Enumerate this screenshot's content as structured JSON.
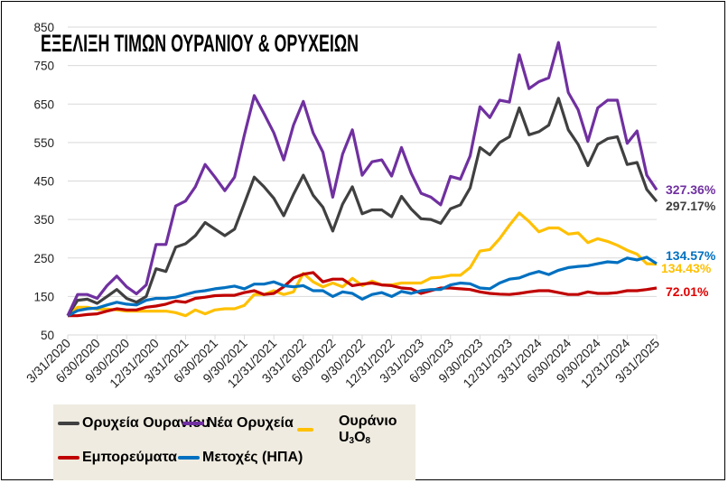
{
  "chart_data": {
    "type": "line",
    "title": "ΕΞΕΛΙΞΗ ΤΙΜΩΝ ΟΥΡΑΝΙΟΥ & ΟΡΥΧΕΙΩΝ",
    "xlabel": "",
    "ylabel": "",
    "ylim": [
      50,
      850
    ],
    "yticks": [
      850,
      750,
      650,
      550,
      450,
      350,
      250,
      150,
      50
    ],
    "grid": true,
    "legend_placement": "bottom",
    "x_tick_labels": [
      "3/31/2020",
      "6/30/2020",
      "9/30/2020",
      "12/31/2020",
      "3/31/2021",
      "6/30/2021",
      "9/30/2021",
      "12/31/2021",
      "3/31/2022",
      "6/30/2022",
      "9/30/2022",
      "12/31/2022",
      "3/31/2023",
      "6/30/2023",
      "9/30/2023",
      "12/31/2023",
      "3/31/2024",
      "6/30/2024",
      "9/30/2024",
      "12/31/2024",
      "3/31/2025"
    ],
    "series": [
      {
        "name": "Ορυχεία Ουρανίου",
        "color": "#404040",
        "end_label": "297.17%",
        "values": [
          100,
          140,
          143,
          132,
          150,
          168,
          145,
          135,
          150,
          222,
          215,
          278,
          287,
          308,
          342,
          325,
          308,
          325,
          392,
          460,
          435,
          405,
          360,
          415,
          465,
          413,
          382,
          320,
          390,
          435,
          365,
          375,
          375,
          357,
          410,
          377,
          352,
          350,
          340,
          378,
          388,
          432,
          537,
          518,
          550,
          565,
          640,
          570,
          578,
          595,
          665,
          583,
          545,
          490,
          545,
          560,
          565,
          493,
          498,
          428,
          397
        ]
      },
      {
        "name": "Νέα Ορυχεία",
        "color": "#7030a0",
        "end_label": "327.36%",
        "values": [
          100,
          155,
          155,
          145,
          178,
          203,
          175,
          157,
          180,
          285,
          285,
          385,
          398,
          435,
          493,
          460,
          425,
          460,
          570,
          672,
          625,
          575,
          505,
          595,
          657,
          575,
          525,
          408,
          520,
          583,
          465,
          500,
          505,
          463,
          537,
          470,
          418,
          408,
          388,
          462,
          455,
          515,
          643,
          615,
          660,
          655,
          778,
          690,
          708,
          718,
          810,
          680,
          635,
          553,
          640,
          660,
          660,
          548,
          580,
          465,
          427
        ]
      },
      {
        "name": "Ουράνιο U3O8",
        "color": "#ffc000",
        "end_label": "134.43%",
        "values": [
          100,
          122,
          122,
          117,
          117,
          115,
          112,
          112,
          112,
          112,
          112,
          108,
          100,
          115,
          105,
          115,
          118,
          118,
          127,
          155,
          155,
          165,
          155,
          162,
          210,
          188,
          175,
          185,
          175,
          197,
          178,
          190,
          180,
          180,
          185,
          185,
          185,
          198,
          200,
          205,
          205,
          225,
          268,
          272,
          300,
          335,
          367,
          345,
          318,
          328,
          328,
          312,
          315,
          290,
          300,
          293,
          283,
          270,
          260,
          235,
          234
        ]
      },
      {
        "name": "Εμπορεύματα",
        "color": "#c00000",
        "label_color": "#e00000",
        "end_label": "72.01%",
        "values": [
          100,
          100,
          103,
          105,
          112,
          118,
          115,
          115,
          122,
          125,
          130,
          138,
          135,
          145,
          148,
          152,
          153,
          153,
          160,
          165,
          155,
          158,
          175,
          198,
          208,
          212,
          188,
          195,
          195,
          178,
          182,
          185,
          180,
          178,
          172,
          170,
          158,
          165,
          172,
          172,
          170,
          168,
          162,
          158,
          156,
          155,
          158,
          162,
          165,
          165,
          160,
          155,
          155,
          162,
          158,
          158,
          160,
          165,
          165,
          168,
          172
        ]
      },
      {
        "name": "Μετοχές (ΗΠΑ)",
        "color": "#0070c0",
        "end_label": "134.57%",
        "values": [
          100,
          113,
          118,
          120,
          128,
          135,
          130,
          128,
          140,
          145,
          145,
          148,
          155,
          162,
          165,
          170,
          173,
          177,
          170,
          182,
          182,
          188,
          178,
          175,
          178,
          165,
          165,
          150,
          162,
          158,
          143,
          155,
          160,
          150,
          163,
          158,
          165,
          168,
          168,
          180,
          185,
          183,
          172,
          170,
          185,
          195,
          198,
          208,
          215,
          207,
          218,
          225,
          228,
          230,
          235,
          240,
          238,
          250,
          245,
          252,
          235
        ]
      }
    ]
  },
  "legend": {
    "items": [
      {
        "label": "Ορυχεία Ουρανίου"
      },
      {
        "label": "Νέα Ορυχεία"
      },
      {
        "label_main": "Ουράνιο  U",
        "label_sub1": "3",
        "label_mid": "O",
        "label_sub2": "8"
      },
      {
        "label": "Εμπορεύματα"
      },
      {
        "label": "Μετοχές (ΗΠΑ)"
      }
    ]
  }
}
